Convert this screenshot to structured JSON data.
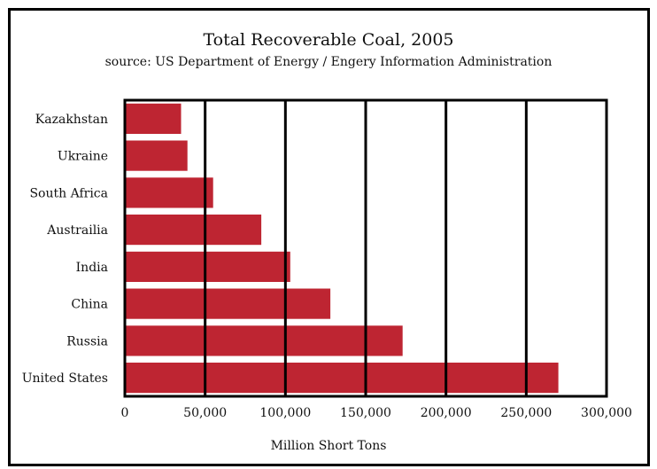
{
  "chart_data": {
    "type": "bar",
    "orientation": "horizontal",
    "title": "Total Recoverable Coal, 2005",
    "subtitle": "source: US Department of Energy / Engery Information Administration",
    "xlabel": "Million Short Tons",
    "ylabel": "",
    "categories": [
      "Kazakhstan",
      "Ukraine",
      "South Africa",
      "Austrailia",
      "India",
      "China",
      "Russia",
      "United States"
    ],
    "values": [
      35000,
      39000,
      55000,
      85000,
      103000,
      128000,
      173000,
      270000
    ],
    "xlim": [
      0,
      300000
    ],
    "xticks": [
      0,
      50000,
      100000,
      150000,
      200000,
      250000,
      300000
    ],
    "xtick_labels": [
      "0",
      "50,000",
      "100,000",
      "150,000",
      "200,000",
      "250,000",
      "300,000"
    ],
    "grid": true,
    "bar_color": "#be2532"
  }
}
